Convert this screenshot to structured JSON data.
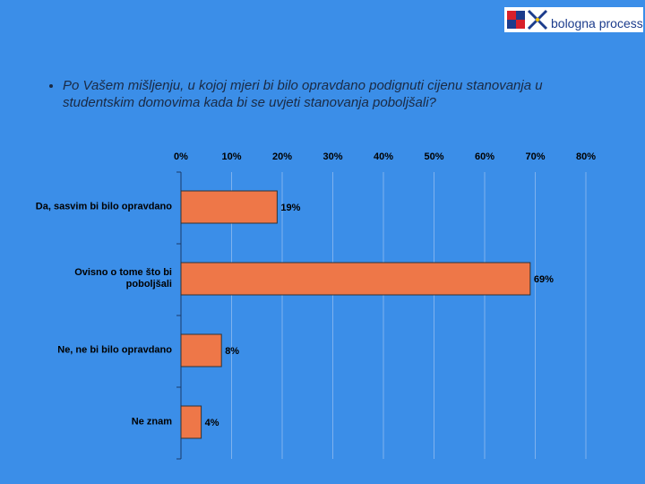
{
  "logo": {
    "text": "bologna process"
  },
  "bullet": "Po Vašem mišljenju, u kojoj mjeri bi bilo opravdano podignuti cijenu stanovanja u studentskim domovima kada bi se uvjeti stanovanja poboljšali?",
  "chart_data": {
    "type": "hbar",
    "categories": [
      "Da, sasvim bi bilo opravdano",
      "Ovisno o tome što bi poboljšali",
      "Ne, ne bi bilo opravdano",
      "Ne znam"
    ],
    "values": [
      19,
      69,
      8,
      4
    ],
    "value_labels": [
      "19%",
      "69%",
      "8%",
      "4%"
    ],
    "color": "#ee7748",
    "xlim": [
      0,
      80
    ],
    "xticks": [
      {
        "value": 0,
        "label": "0%"
      },
      {
        "value": 10,
        "label": "10%"
      },
      {
        "value": 20,
        "label": "20%"
      },
      {
        "value": 30,
        "label": "30%"
      },
      {
        "value": 40,
        "label": "40%"
      },
      {
        "value": 50,
        "label": "50%"
      },
      {
        "value": 60,
        "label": "60%"
      },
      {
        "value": 70,
        "label": "70%"
      },
      {
        "value": 80,
        "label": "80%"
      }
    ],
    "grid": true
  }
}
